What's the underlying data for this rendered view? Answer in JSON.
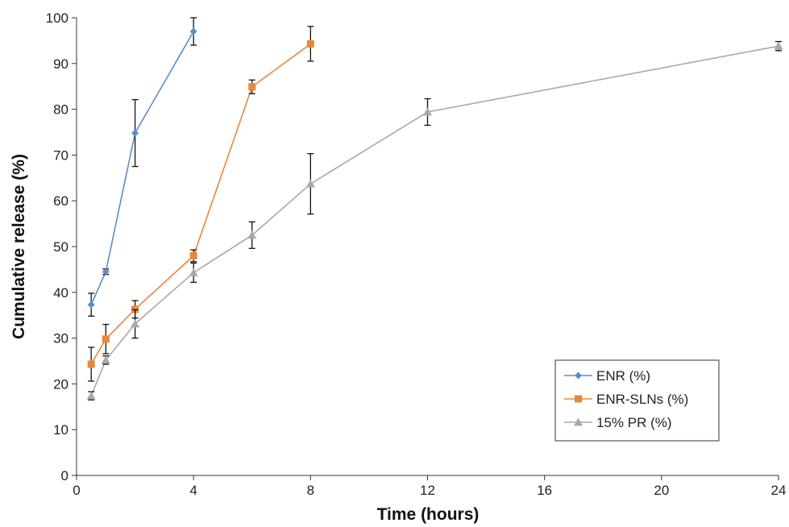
{
  "chart_data": {
    "type": "line",
    "xlabel": "Time (hours)",
    "ylabel": "Cumulative release (%)",
    "xlim": [
      0,
      24
    ],
    "ylim": [
      0,
      100
    ],
    "x_ticks": [
      "0",
      "4",
      "8",
      "12",
      "16",
      "20",
      "24"
    ],
    "y_ticks": [
      "0",
      "10",
      "20",
      "30",
      "40",
      "50",
      "60",
      "70",
      "80",
      "90",
      "100"
    ],
    "grid": false,
    "legend_position": "bottom-right",
    "series": [
      {
        "name": "ENR (%)",
        "color": "#5b8fc7",
        "marker": "diamond",
        "points": [
          {
            "x": 0.5,
            "y": 37.3,
            "err": 2.5
          },
          {
            "x": 1,
            "y": 44.5,
            "err": 0.6
          },
          {
            "x": 2,
            "y": 74.8,
            "err": 7.3
          },
          {
            "x": 4,
            "y": 97.0,
            "err": 3.0
          }
        ]
      },
      {
        "name": "ENR-SLNs (%)",
        "color": "#e8873a",
        "marker": "square",
        "points": [
          {
            "x": 0.5,
            "y": 24.3,
            "err": 3.7
          },
          {
            "x": 1,
            "y": 29.8,
            "err": 3.2
          },
          {
            "x": 2,
            "y": 36.3,
            "err": 1.9
          },
          {
            "x": 4,
            "y": 48.0,
            "err": 1.3
          },
          {
            "x": 6,
            "y": 84.9,
            "err": 1.5
          },
          {
            "x": 8,
            "y": 94.3,
            "err": 3.8
          }
        ]
      },
      {
        "name": "15% PR (%)",
        "color": "#a9a9a9",
        "marker": "triangle",
        "points": [
          {
            "x": 0.5,
            "y": 17.4,
            "err": 0.9
          },
          {
            "x": 1,
            "y": 25.2,
            "err": 0.9
          },
          {
            "x": 2,
            "y": 33.1,
            "err": 3.1
          },
          {
            "x": 4,
            "y": 44.3,
            "err": 2.1
          },
          {
            "x": 6,
            "y": 52.5,
            "err": 2.9
          },
          {
            "x": 8,
            "y": 63.7,
            "err": 6.6
          },
          {
            "x": 12,
            "y": 79.4,
            "err": 2.9
          },
          {
            "x": 24,
            "y": 93.8,
            "err": 1.0
          }
        ]
      }
    ]
  }
}
